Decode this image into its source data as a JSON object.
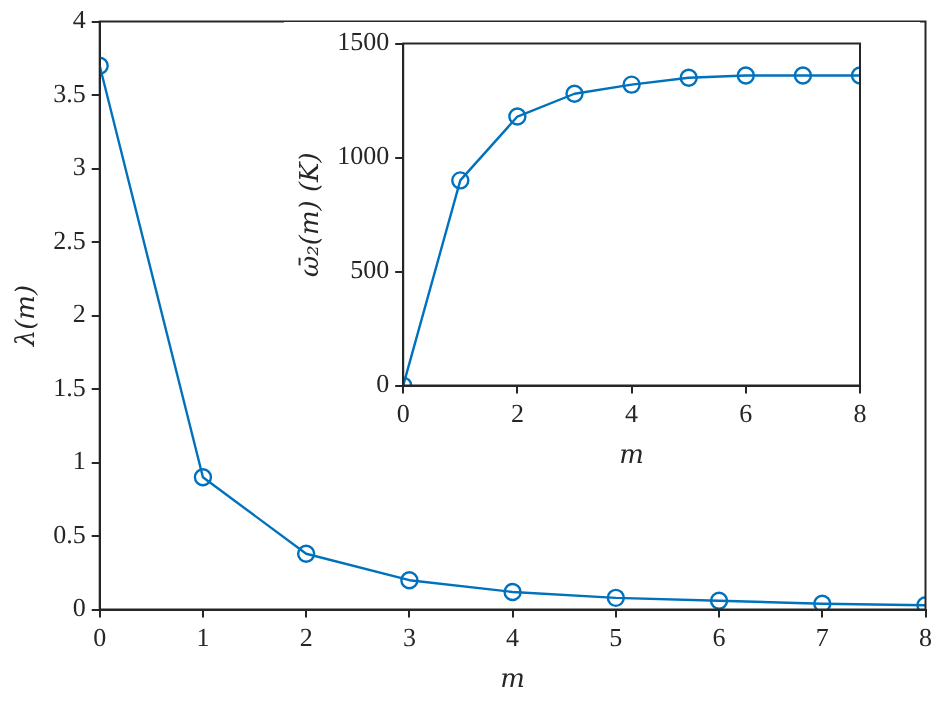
{
  "chart_data": [
    {
      "type": "line",
      "xlabel": "m",
      "ylabel": "λ(m)",
      "x": [
        0,
        1,
        2,
        3,
        4,
        5,
        6,
        7,
        8
      ],
      "series": [
        {
          "color": "#0072bd",
          "values": [
            3.7,
            0.9,
            0.38,
            0.2,
            0.12,
            0.08,
            0.06,
            0.04,
            0.03
          ]
        }
      ],
      "xlim": [
        0,
        8
      ],
      "xticks": [
        0,
        1,
        2,
        3,
        4,
        5,
        6,
        7,
        8
      ],
      "ylim": [
        0,
        4
      ],
      "yticks": [
        0,
        0.5,
        1,
        1.5,
        2,
        2.5,
        3,
        3.5,
        4
      ],
      "grid": false,
      "legend": false,
      "marker": "circle",
      "line_style": "solid"
    },
    {
      "type": "line",
      "xlabel": "m",
      "ylabel": "ω̄₂(m) (K)",
      "x": [
        0,
        1,
        2,
        3,
        4,
        5,
        6,
        7,
        8
      ],
      "series": [
        {
          "color": "#0072bd",
          "values": [
            0,
            900,
            1180,
            1280,
            1320,
            1350,
            1360,
            1360,
            1360
          ]
        }
      ],
      "xlim": [
        0,
        8
      ],
      "xticks": [
        0,
        2,
        4,
        6,
        8
      ],
      "ylim": [
        0,
        1500
      ],
      "yticks": [
        0,
        500,
        1000,
        1500
      ],
      "grid": false,
      "legend": false,
      "marker": "circle",
      "line_style": "solid"
    }
  ]
}
